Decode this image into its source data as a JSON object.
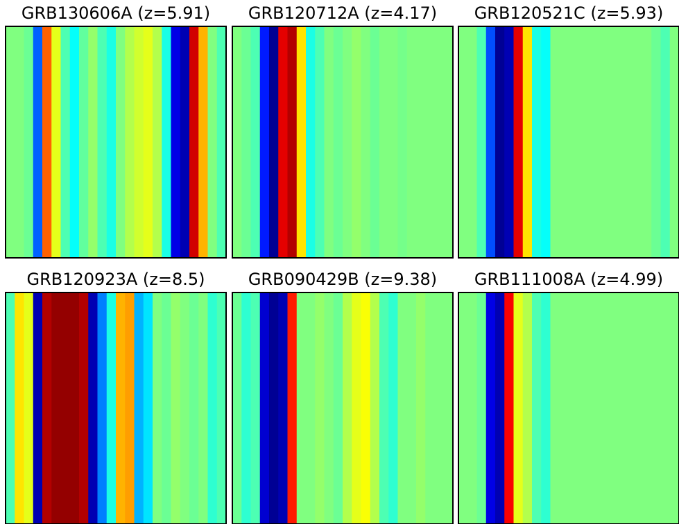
{
  "chart_data": [
    {
      "type": "heatmap",
      "title": "GRB130606A (z=5.91)",
      "colormap": "jet",
      "zlim": [
        0,
        1
      ],
      "values": [
        0.5,
        0.5,
        0.48,
        0.22,
        0.78,
        0.6,
        0.45,
        0.38,
        0.47,
        0.52,
        0.45,
        0.4,
        0.5,
        0.55,
        0.58,
        0.6,
        0.55,
        0.4,
        0.1,
        0.05,
        0.92,
        0.7,
        0.5,
        0.45
      ]
    },
    {
      "type": "heatmap",
      "title": "GRB120712A (z=4.17)",
      "colormap": "jet",
      "zlim": [
        0,
        1
      ],
      "values": [
        0.5,
        0.48,
        0.45,
        0.15,
        0.02,
        0.9,
        0.95,
        0.65,
        0.4,
        0.45,
        0.5,
        0.48,
        0.5,
        0.52,
        0.5,
        0.48,
        0.5,
        0.5,
        0.49,
        0.5,
        0.5,
        0.5,
        0.5,
        0.5
      ]
    },
    {
      "type": "heatmap",
      "title": "GRB120521C (z=5.93)",
      "colormap": "jet",
      "zlim": [
        0,
        1
      ],
      "values": [
        0.5,
        0.5,
        0.45,
        0.2,
        0.02,
        0.05,
        0.9,
        0.65,
        0.4,
        0.38,
        0.5,
        0.5,
        0.5,
        0.5,
        0.5,
        0.5,
        0.5,
        0.5,
        0.5,
        0.5,
        0.5,
        0.48,
        0.45,
        0.5
      ]
    },
    {
      "type": "heatmap",
      "title": "GRB120923A (z=8.5)",
      "colormap": "jet",
      "zlim": [
        0,
        1
      ],
      "values": [
        0.45,
        0.65,
        0.6,
        0.05,
        0.95,
        0.98,
        0.98,
        0.98,
        0.95,
        0.05,
        0.25,
        0.4,
        0.7,
        0.72,
        0.3,
        0.35,
        0.5,
        0.48,
        0.52,
        0.5,
        0.48,
        0.5,
        0.42,
        0.45
      ]
    },
    {
      "type": "heatmap",
      "title": "GRB090429B (z=9.38)",
      "colormap": "jet",
      "zlim": [
        0,
        1
      ],
      "values": [
        0.48,
        0.42,
        0.45,
        0.08,
        0.02,
        0.05,
        0.85,
        0.5,
        0.5,
        0.52,
        0.5,
        0.48,
        0.55,
        0.6,
        0.62,
        0.55,
        0.45,
        0.42,
        0.5,
        0.5,
        0.52,
        0.5,
        0.5,
        0.5
      ]
    },
    {
      "type": "heatmap",
      "title": "GRB111008A (z=4.99)",
      "colormap": "jet",
      "zlim": [
        0,
        1
      ],
      "values": [
        0.5,
        0.5,
        0.48,
        0.1,
        0.05,
        0.88,
        0.6,
        0.55,
        0.45,
        0.42,
        0.5,
        0.5,
        0.5,
        0.5,
        0.5,
        0.5,
        0.5,
        0.5,
        0.5,
        0.5,
        0.5,
        0.5,
        0.5,
        0.5
      ]
    }
  ]
}
